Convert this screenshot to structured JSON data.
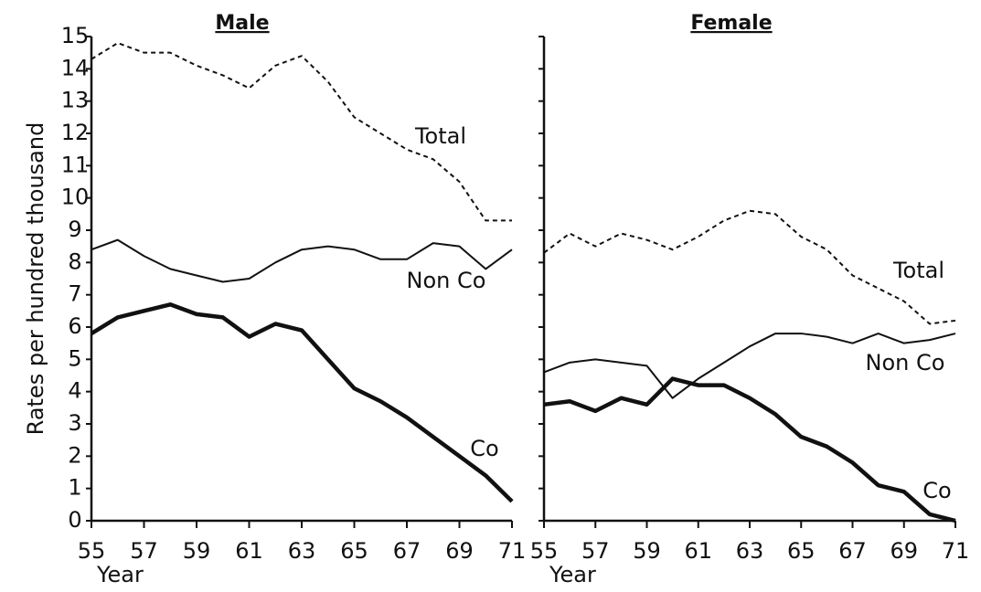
{
  "chart_data": [
    {
      "type": "line",
      "title": "Male",
      "y_label": "Rates per hundred thousand",
      "x_label": "Year",
      "x": [
        55,
        56,
        57,
        58,
        59,
        60,
        61,
        62,
        63,
        64,
        65,
        66,
        67,
        68,
        69,
        70,
        71
      ],
      "xlim": [
        55,
        71
      ],
      "xticks": [
        55,
        57,
        59,
        61,
        63,
        65,
        67,
        69,
        71
      ],
      "ylim": [
        0,
        15
      ],
      "yticks": [
        0,
        1,
        2,
        3,
        4,
        5,
        6,
        7,
        8,
        9,
        10,
        11,
        12,
        13,
        14,
        15
      ],
      "series": [
        {
          "name": "Total",
          "color": "#111111",
          "line_style": "dashed",
          "values": [
            14.3,
            14.8,
            14.5,
            14.5,
            14.1,
            13.8,
            13.4,
            14.1,
            14.4,
            13.6,
            12.5,
            12.0,
            11.5,
            11.2,
            10.5,
            9.3,
            9.3
          ]
        },
        {
          "name": "Non Co",
          "color": "#111111",
          "line_style": "thin",
          "values": [
            8.4,
            8.7,
            8.2,
            7.8,
            7.6,
            7.4,
            7.5,
            8.0,
            8.4,
            8.5,
            8.4,
            8.1,
            8.1,
            8.6,
            8.5,
            7.8,
            8.4
          ]
        },
        {
          "name": "Co",
          "color": "#111111",
          "line_style": "thick",
          "values": [
            5.8,
            6.3,
            6.5,
            6.7,
            6.4,
            6.3,
            5.7,
            6.1,
            5.9,
            5.0,
            4.1,
            3.7,
            3.2,
            2.6,
            2.0,
            1.4,
            0.6
          ]
        }
      ]
    },
    {
      "type": "line",
      "title": "Female",
      "x_label": "Year",
      "x": [
        55,
        56,
        57,
        58,
        59,
        60,
        61,
        62,
        63,
        64,
        65,
        66,
        67,
        68,
        69,
        70,
        71
      ],
      "xlim": [
        55,
        71
      ],
      "xticks": [
        55,
        57,
        59,
        61,
        63,
        65,
        67,
        69,
        71
      ],
      "ylim": [
        0,
        15
      ],
      "yticks": [
        0,
        1,
        2,
        3,
        4,
        5,
        6,
        7,
        8,
        9,
        10,
        11,
        12,
        13,
        14,
        15
      ],
      "series": [
        {
          "name": "Total",
          "color": "#111111",
          "line_style": "dashed",
          "values": [
            8.3,
            8.9,
            8.5,
            8.9,
            8.7,
            8.4,
            8.8,
            9.3,
            9.6,
            9.5,
            8.8,
            8.4,
            7.6,
            7.2,
            6.8,
            6.1,
            6.2
          ]
        },
        {
          "name": "Non Co",
          "color": "#111111",
          "line_style": "thin",
          "values": [
            4.6,
            4.9,
            5.0,
            4.9,
            4.8,
            3.8,
            4.4,
            4.9,
            5.4,
            5.8,
            5.8,
            5.7,
            5.5,
            5.8,
            5.5,
            5.6,
            5.8
          ]
        },
        {
          "name": "Co",
          "color": "#111111",
          "line_style": "thick",
          "values": [
            3.6,
            3.7,
            3.4,
            3.8,
            3.6,
            4.4,
            4.2,
            4.2,
            3.8,
            3.3,
            2.6,
            2.3,
            1.8,
            1.1,
            0.9,
            0.2,
            0.0
          ]
        }
      ]
    }
  ]
}
